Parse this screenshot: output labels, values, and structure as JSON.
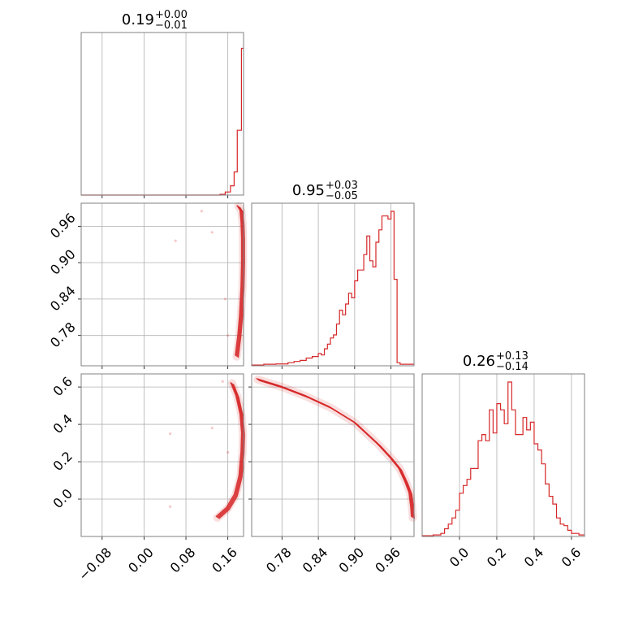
{
  "chart_data": {
    "type": "corner",
    "color": "#d62728",
    "grid": true,
    "params": [
      {
        "index": 0,
        "title_value": "0.19",
        "title_plus": "+0.00",
        "title_minus": "−0.01",
        "range": [
          -0.12,
          0.19
        ],
        "ticks": [
          -0.08,
          0.0,
          0.08,
          0.16
        ],
        "tick_labels": [
          "−0.08",
          "0.00",
          "0.08",
          "0.16"
        ]
      },
      {
        "index": 1,
        "title_value": "0.95",
        "title_plus": "+0.03",
        "title_minus": "−0.05",
        "range": [
          0.73,
          0.998
        ],
        "ticks": [
          0.78,
          0.84,
          0.9,
          0.96
        ],
        "tick_labels": [
          "0.78",
          "0.84",
          "0.90",
          "0.96"
        ]
      },
      {
        "index": 2,
        "title_value": "0.26",
        "title_plus": "+0.13",
        "title_minus": "−0.14",
        "range": [
          -0.2,
          0.67
        ],
        "ticks": [
          0.0,
          0.2,
          0.4,
          0.6
        ],
        "tick_labels": [
          "0.0",
          "0.2",
          "0.4",
          "0.6"
        ]
      }
    ],
    "hist_1d": [
      {
        "param": 0,
        "edges": [
          -0.12,
          0.145,
          0.155,
          0.165,
          0.172,
          0.178,
          0.182,
          0.186,
          0.19
        ],
        "counts": [
          0,
          0.005,
          0.02,
          0.06,
          0.15,
          0.42,
          0.42,
          0.95
        ]
      },
      {
        "param": 1,
        "edges": [
          0.73,
          0.75,
          0.77,
          0.79,
          0.8,
          0.81,
          0.82,
          0.83,
          0.84,
          0.845,
          0.85,
          0.855,
          0.86,
          0.865,
          0.87,
          0.875,
          0.88,
          0.885,
          0.89,
          0.895,
          0.9,
          0.905,
          0.91,
          0.915,
          0.92,
          0.925,
          0.93,
          0.935,
          0.94,
          0.945,
          0.95,
          0.955,
          0.96,
          0.965,
          0.97,
          0.975,
          0.98,
          0.985,
          0.99,
          0.995,
          0.998
        ],
        "counts": [
          0.005,
          0.01,
          0.012,
          0.02,
          0.028,
          0.035,
          0.05,
          0.06,
          0.08,
          0.07,
          0.11,
          0.14,
          0.18,
          0.2,
          0.27,
          0.36,
          0.33,
          0.4,
          0.47,
          0.44,
          0.55,
          0.62,
          0.62,
          0.72,
          0.84,
          0.68,
          0.64,
          0.8,
          0.88,
          0.97,
          0.97,
          0.95,
          1.0,
          0.56,
          0.02,
          0.01,
          0.01,
          0.01,
          0.01,
          0.01
        ]
      },
      {
        "param": 2,
        "edges": [
          -0.2,
          -0.14,
          -0.1,
          -0.08,
          -0.06,
          -0.04,
          -0.02,
          0.0,
          0.02,
          0.04,
          0.06,
          0.08,
          0.1,
          0.12,
          0.14,
          0.16,
          0.18,
          0.2,
          0.22,
          0.24,
          0.26,
          0.28,
          0.3,
          0.32,
          0.34,
          0.36,
          0.38,
          0.4,
          0.42,
          0.44,
          0.46,
          0.48,
          0.5,
          0.52,
          0.54,
          0.56,
          0.58,
          0.6,
          0.62,
          0.64,
          0.67
        ],
        "counts": [
          0.005,
          0.01,
          0.02,
          0.05,
          0.08,
          0.12,
          0.17,
          0.28,
          0.33,
          0.37,
          0.44,
          0.44,
          0.62,
          0.66,
          0.62,
          0.82,
          0.67,
          0.86,
          0.82,
          0.73,
          1.0,
          0.82,
          0.66,
          0.66,
          0.77,
          0.69,
          0.74,
          0.6,
          0.56,
          0.47,
          0.34,
          0.26,
          0.21,
          0.12,
          0.08,
          0.07,
          0.04,
          0.02,
          0.02,
          0.01
        ]
      }
    ],
    "scatter_2d": [
      {
        "x_param": 0,
        "y_param": 1,
        "curve": [
          [
            0.177,
            0.745
          ],
          [
            0.182,
            0.78
          ],
          [
            0.185,
            0.81
          ],
          [
            0.188,
            0.86
          ],
          [
            0.189,
            0.9
          ],
          [
            0.189,
            0.94
          ],
          [
            0.188,
            0.965
          ],
          [
            0.186,
            0.985
          ],
          [
            0.18,
            0.993
          ]
        ],
        "outliers": [
          [
            0.06,
            0.936
          ],
          [
            0.13,
            0.95
          ],
          [
            0.16,
            0.78
          ],
          [
            0.11,
            0.985
          ],
          [
            0.155,
            0.84
          ]
        ]
      },
      {
        "x_param": 0,
        "y_param": 2,
        "curve": [
          [
            0.14,
            -0.1
          ],
          [
            0.16,
            -0.05
          ],
          [
            0.175,
            0.02
          ],
          [
            0.184,
            0.12
          ],
          [
            0.188,
            0.25
          ],
          [
            0.189,
            0.35
          ],
          [
            0.186,
            0.45
          ],
          [
            0.178,
            0.55
          ],
          [
            0.168,
            0.62
          ]
        ],
        "outliers": [
          [
            0.05,
            0.35
          ],
          [
            0.13,
            0.38
          ],
          [
            0.05,
            -0.04
          ],
          [
            0.15,
            0.63
          ],
          [
            0.16,
            0.25
          ]
        ]
      },
      {
        "x_param": 1,
        "y_param": 2,
        "curve": [
          [
            0.74,
            0.64
          ],
          [
            0.78,
            0.6
          ],
          [
            0.82,
            0.55
          ],
          [
            0.86,
            0.49
          ],
          [
            0.88,
            0.45
          ],
          [
            0.9,
            0.41
          ],
          [
            0.92,
            0.35
          ],
          [
            0.94,
            0.29
          ],
          [
            0.96,
            0.22
          ],
          [
            0.975,
            0.16
          ],
          [
            0.985,
            0.09
          ],
          [
            0.992,
            0.03
          ],
          [
            0.995,
            -0.05
          ],
          [
            0.996,
            -0.1
          ]
        ],
        "outliers": []
      }
    ]
  }
}
